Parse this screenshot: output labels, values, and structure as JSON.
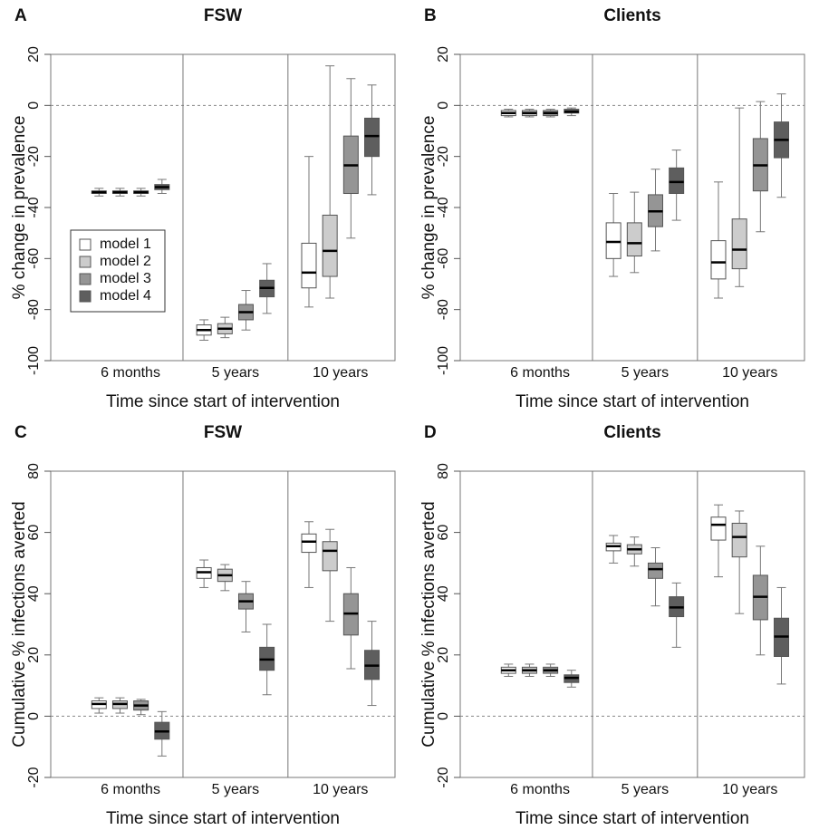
{
  "chart_data": [
    {
      "type": "box",
      "panel": "A",
      "title": "FSW",
      "ylabel": "% change in prevalence",
      "xlabel": "Time since start of intervention",
      "categories": [
        "6 months",
        "5 years",
        "10 years"
      ],
      "ylim": [
        -100,
        20
      ],
      "yticks": [
        -100,
        -80,
        -60,
        -40,
        -20,
        0,
        20
      ],
      "refline": 0,
      "legend": "center left",
      "series": [
        {
          "name": "model 1",
          "color": "#ffffff",
          "values": [
            [
              -35.5,
              -34.5,
              -34,
              -33.5,
              -32.5
            ],
            [
              -92,
              -90,
              -88,
              -86,
              -84
            ],
            [
              -79,
              -71.5,
              -65.5,
              -54,
              -20
            ]
          ]
        },
        {
          "name": "model 2",
          "color": "#cccccc",
          "values": [
            [
              -35.5,
              -34.5,
              -34,
              -33.5,
              -32.5
            ],
            [
              -91,
              -89.5,
              -87.5,
              -85.5,
              -83
            ],
            [
              -75.5,
              -67,
              -57,
              -43,
              15.5
            ]
          ]
        },
        {
          "name": "model 3",
          "color": "#959595",
          "values": [
            [
              -35.5,
              -34.5,
              -34,
              -33.5,
              -32.5
            ],
            [
              -88,
              -84,
              -81,
              -78,
              -72.5
            ],
            [
              -52,
              -34.5,
              -23.5,
              -12,
              10.5
            ]
          ]
        },
        {
          "name": "model 4",
          "color": "#5e5e5e",
          "values": [
            [
              -34.5,
              -33,
              -32,
              -31,
              -29
            ],
            [
              -81.5,
              -75,
              -71.5,
              -68.5,
              -62
            ],
            [
              -35,
              -20,
              -12,
              -5,
              8
            ]
          ]
        }
      ]
    },
    {
      "type": "box",
      "panel": "B",
      "title": "Clients",
      "ylabel": "% change in prevalence",
      "xlabel": "Time since start of intervention",
      "categories": [
        "6 months",
        "5 years",
        "10 years"
      ],
      "ylim": [
        -100,
        20
      ],
      "yticks": [
        -100,
        -80,
        -60,
        -40,
        -20,
        0,
        20
      ],
      "refline": 0,
      "series": [
        {
          "color": "#ffffff",
          "values": [
            [
              -4.5,
              -4,
              -3,
              -2,
              -1.5
            ],
            [
              -67,
              -60,
              -53.5,
              -46,
              -34.5
            ],
            [
              -75.5,
              -68,
              -61.5,
              -53,
              -30
            ]
          ]
        },
        {
          "color": "#cccccc",
          "values": [
            [
              -4.5,
              -4,
              -3,
              -2,
              -1.5
            ],
            [
              -65.5,
              -59,
              -54,
              -46,
              -34
            ],
            [
              -71,
              -64,
              -56.5,
              -44.5,
              -1
            ]
          ]
        },
        {
          "color": "#959595",
          "values": [
            [
              -4.5,
              -4,
              -3,
              -2,
              -1.5
            ],
            [
              -57,
              -47.5,
              -41.5,
              -35,
              -25
            ],
            [
              -49.5,
              -33.5,
              -23.5,
              -13,
              1.5
            ]
          ]
        },
        {
          "color": "#5e5e5e",
          "values": [
            [
              -4,
              -3,
              -2.5,
              -1.5,
              -1
            ],
            [
              -45,
              -34.5,
              -30,
              -24.5,
              -17.5
            ],
            [
              -36,
              -20.5,
              -13.5,
              -6.5,
              4.5
            ]
          ]
        }
      ]
    },
    {
      "type": "box",
      "panel": "C",
      "title": "FSW",
      "ylabel": "Cumulative % infections averted",
      "xlabel": "Time since start of intervention",
      "categories": [
        "6 months",
        "5 years",
        "10 years"
      ],
      "ylim": [
        -20,
        80
      ],
      "yticks": [
        -20,
        0,
        20,
        40,
        60,
        80
      ],
      "refline": 0,
      "series": [
        {
          "color": "#ffffff",
          "values": [
            [
              1,
              2.5,
              4,
              5,
              6
            ],
            [
              42,
              45,
              47,
              48.5,
              51
            ],
            [
              42,
              53.5,
              57,
              59.5,
              63.5
            ]
          ]
        },
        {
          "color": "#cccccc",
          "values": [
            [
              1,
              2.5,
              4,
              5,
              6
            ],
            [
              41,
              44,
              46,
              48,
              49.5
            ],
            [
              31,
              47.5,
              54,
              57,
              61
            ]
          ]
        },
        {
          "color": "#959595",
          "values": [
            [
              0.5,
              2,
              3.5,
              5,
              5.5
            ],
            [
              27.5,
              35,
              37.5,
              40,
              44
            ],
            [
              15.5,
              26.5,
              33.5,
              40,
              48.5
            ]
          ]
        },
        {
          "color": "#5e5e5e",
          "values": [
            [
              -13,
              -7.5,
              -5,
              -2,
              1.5
            ],
            [
              7,
              15,
              18.5,
              22.5,
              30
            ],
            [
              3.5,
              12,
              16.5,
              21.5,
              31
            ]
          ]
        }
      ]
    },
    {
      "type": "box",
      "panel": "D",
      "title": "Clients",
      "ylabel": "Cumulative % infections averted",
      "xlabel": "Time since start of intervention",
      "categories": [
        "6 months",
        "5 years",
        "10 years"
      ],
      "ylim": [
        -20,
        80
      ],
      "yticks": [
        -20,
        0,
        20,
        40,
        60,
        80
      ],
      "refline": 0,
      "series": [
        {
          "color": "#ffffff",
          "values": [
            [
              13,
              14,
              15,
              16,
              17
            ],
            [
              50,
              54,
              55.5,
              56.5,
              59
            ],
            [
              45.5,
              57.5,
              62.5,
              65,
              69
            ]
          ]
        },
        {
          "color": "#cccccc",
          "values": [
            [
              13,
              14,
              15,
              16,
              17
            ],
            [
              49,
              53,
              54.5,
              56,
              58.5
            ],
            [
              33.5,
              52,
              58.5,
              63,
              67
            ]
          ]
        },
        {
          "color": "#959595",
          "values": [
            [
              13,
              14,
              15,
              16,
              17
            ],
            [
              36,
              45,
              48,
              50,
              55
            ],
            [
              20,
              31.5,
              39,
              46,
              55.5
            ]
          ]
        },
        {
          "color": "#5e5e5e",
          "values": [
            [
              9.5,
              11,
              12.5,
              13.5,
              15
            ],
            [
              22.5,
              32.5,
              35.5,
              39,
              43.5
            ],
            [
              10.5,
              19.5,
              26,
              32,
              42
            ]
          ]
        }
      ]
    }
  ]
}
